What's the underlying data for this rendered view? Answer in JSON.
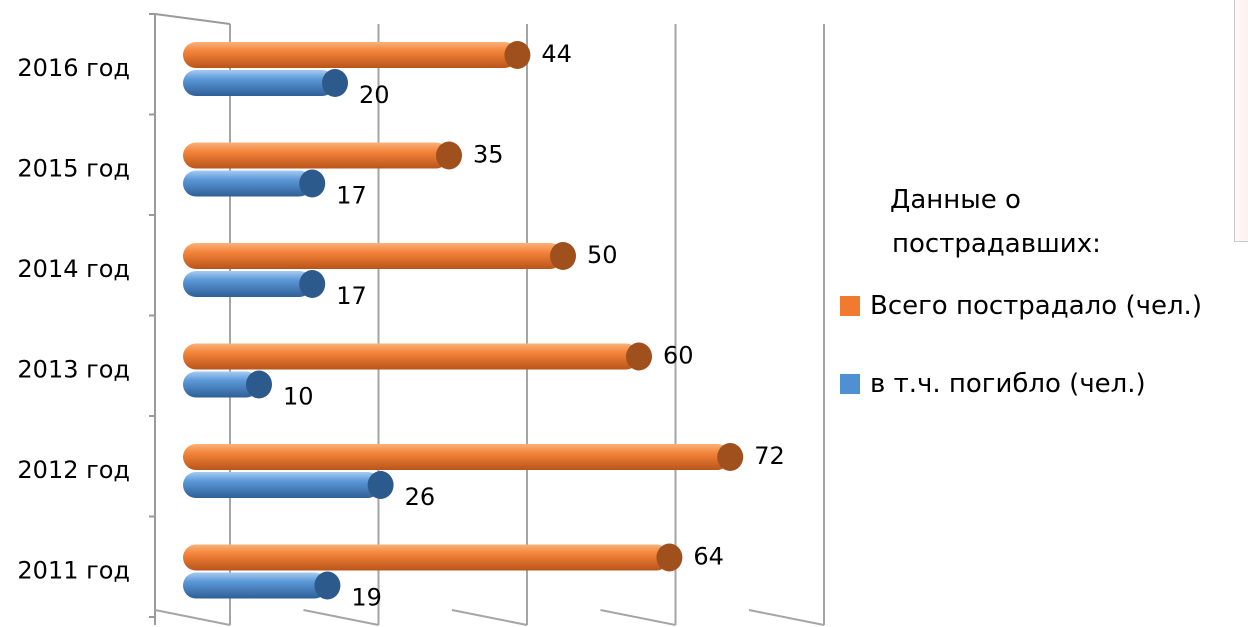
{
  "chart_data": {
    "type": "bar",
    "orientation": "horizontal",
    "categories": [
      "2016 год",
      "2015 год",
      "2014 год",
      "2013 год",
      "2012 год",
      "2011 год"
    ],
    "series": [
      {
        "name": "Всего пострадало (чел.)",
        "values": [
          44,
          35,
          50,
          60,
          72,
          64
        ],
        "color": "#f07b2f"
      },
      {
        "name": "в т.ч. погибло  (чел.)",
        "values": [
          20,
          17,
          17,
          10,
          26,
          19
        ],
        "color": "#4f8fd4"
      }
    ],
    "xlim": [
      0,
      90
    ],
    "grid": true,
    "legend_title": [
      "Данные о",
      "пострадавших:"
    ],
    "legend_position": "right"
  }
}
